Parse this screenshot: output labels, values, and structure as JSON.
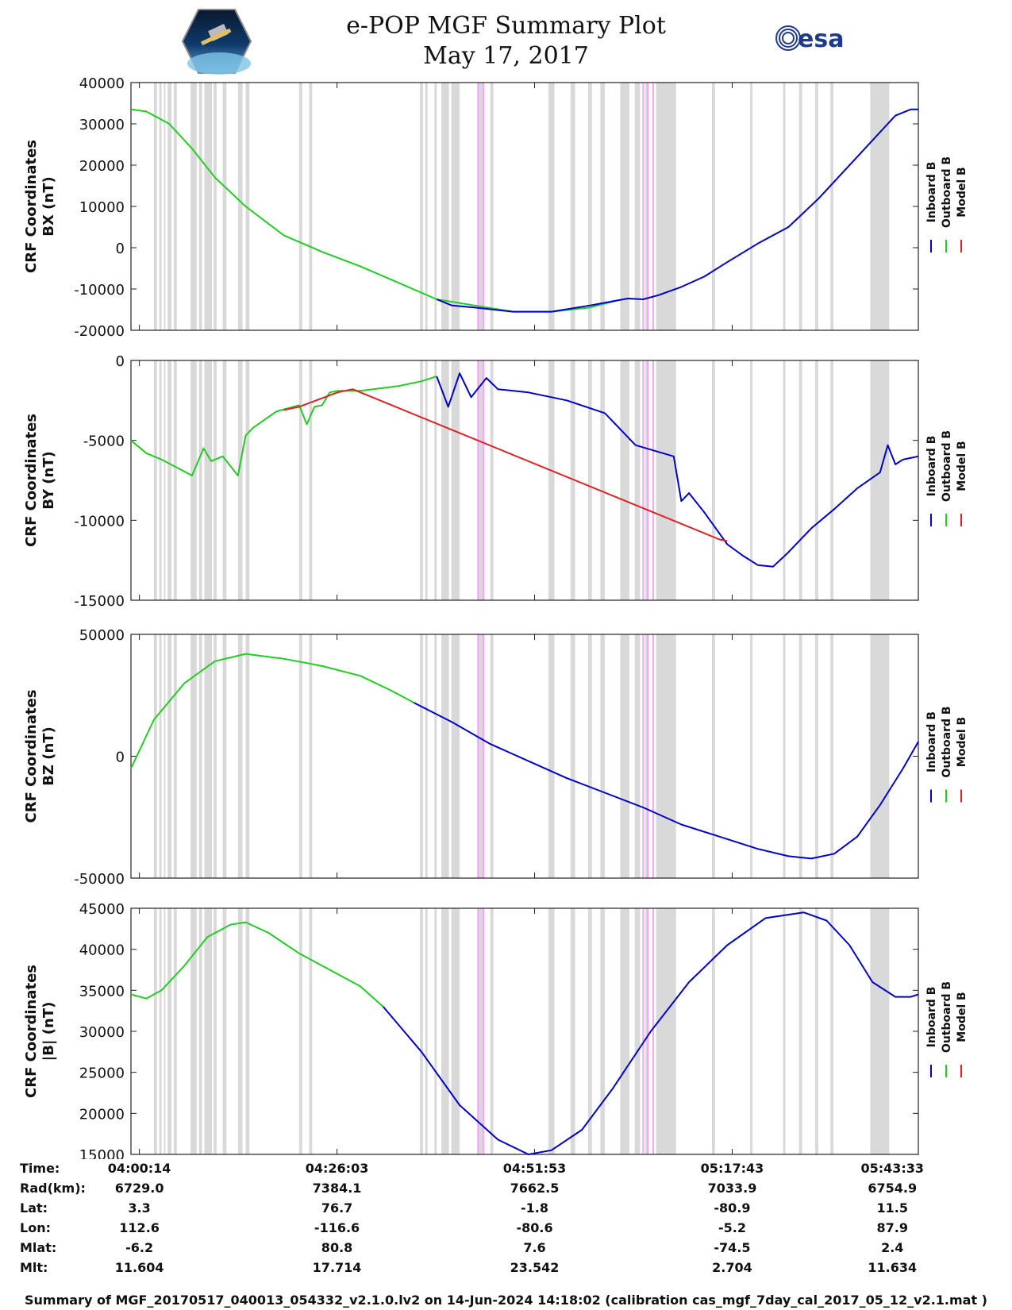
{
  "header": {
    "title_line1": "e-POP MGF Summary Plot",
    "title_line2": "May 17, 2017",
    "logo_left": "cassiope-mission-logo",
    "logo_right_text": "esa"
  },
  "legend": [
    "Inboard B",
    "Outboard B",
    "Model B"
  ],
  "colors": {
    "inboard": "#0000cc",
    "outboard": "#22cc22",
    "model": "#dd2222",
    "gap": "#d9d9d9",
    "magenta": "#f5a8f5"
  },
  "chart_data": [
    {
      "type": "line",
      "ylabel_line1": "CRF Coordinates",
      "ylabel_line2": "BX (nT)",
      "ylim": [
        -20000,
        40000
      ],
      "yticks": [
        40000,
        30000,
        20000,
        10000,
        0,
        -10000,
        -20000
      ],
      "x_minutes_range": [
        0,
        103
      ],
      "series": [
        {
          "name": "Outboard B",
          "color": "#22cc22",
          "x": [
            0,
            2,
            5,
            8,
            11,
            15,
            20,
            25,
            30,
            35,
            40,
            45,
            50,
            55,
            60,
            63.5
          ],
          "y": [
            33500,
            33000,
            30000,
            24000,
            17000,
            10000,
            3000,
            -1000,
            -4500,
            -8500,
            -12500,
            -14000,
            -15500,
            -15500,
            -14500,
            -12800
          ]
        },
        {
          "name": "Inboard B",
          "color": "#0000cc",
          "x": [
            40,
            42,
            45,
            50,
            55,
            60,
            65,
            67,
            69,
            72,
            75,
            78,
            82,
            86,
            90,
            95,
            100,
            102,
            103
          ],
          "y": [
            -12500,
            -14000,
            -14500,
            -15500,
            -15500,
            -14000,
            -12300,
            -12500,
            -11500,
            -9500,
            -7000,
            -3500,
            1000,
            5000,
            12000,
            22000,
            32000,
            33500,
            33500
          ]
        }
      ]
    },
    {
      "type": "line",
      "ylabel_line1": "CRF Coordinates",
      "ylabel_line2": "BY (nT)",
      "ylim": [
        -15000,
        0
      ],
      "yticks": [
        0,
        -5000,
        -10000,
        -15000
      ],
      "x_minutes_range": [
        0,
        103
      ],
      "series": [
        {
          "name": "Outboard B",
          "color": "#22cc22",
          "x": [
            0,
            2,
            4,
            6,
            8,
            9.5,
            10.5,
            12,
            14,
            15,
            16,
            19,
            22,
            23,
            24,
            25,
            26,
            27,
            30,
            35,
            38,
            40
          ],
          "y": [
            -5000,
            -5800,
            -6200,
            -6700,
            -7200,
            -5500,
            -6300,
            -6000,
            -7200,
            -4700,
            -4200,
            -3200,
            -2800,
            -4000,
            -2900,
            -2800,
            -2000,
            -1900,
            -1900,
            -1600,
            -1300,
            -1000
          ]
        },
        {
          "name": "Inboard B",
          "color": "#0000cc",
          "x": [
            40,
            41.5,
            43,
            44.5,
            46.5,
            48,
            52,
            57,
            62,
            66,
            71,
            72,
            73,
            75,
            78,
            80,
            82,
            84,
            86,
            89,
            92,
            95,
            98,
            99,
            100,
            101,
            103
          ],
          "y": [
            -1000,
            -2900,
            -800,
            -2300,
            -1100,
            -1800,
            -2000,
            -2500,
            -3300,
            -5300,
            -6000,
            -8800,
            -8300,
            -9500,
            -11500,
            -12200,
            -12800,
            -12900,
            -12000,
            -10500,
            -9300,
            -8000,
            -7000,
            -5300,
            -6500,
            -6200,
            -6000
          ]
        },
        {
          "name": "Model B",
          "color": "#dd2222",
          "x": [
            20,
            22,
            27,
            29,
            77,
            78
          ],
          "y": [
            -3100,
            -2900,
            -2000,
            -1800,
            -11200,
            -11300
          ]
        }
      ]
    },
    {
      "type": "line",
      "ylabel_line1": "CRF Coordinates",
      "ylabel_line2": "BZ (nT)",
      "ylim": [
        -50000,
        50000
      ],
      "yticks": [
        50000,
        0,
        -50000
      ],
      "x_minutes_range": [
        0,
        103
      ],
      "series": [
        {
          "name": "Outboard B",
          "color": "#22cc22",
          "x": [
            0,
            3,
            7,
            11,
            15,
            20,
            25,
            30,
            34,
            37
          ],
          "y": [
            -5000,
            15000,
            30000,
            39000,
            42000,
            40000,
            37000,
            33000,
            27000,
            22000
          ]
        },
        {
          "name": "Inboard B",
          "color": "#0000cc",
          "x": [
            37,
            42,
            47,
            52,
            57,
            62,
            67,
            72,
            77,
            82,
            86,
            89,
            92,
            95,
            98,
            101,
            103
          ],
          "y": [
            22000,
            14000,
            5000,
            -2000,
            -9000,
            -15000,
            -21000,
            -28000,
            -33000,
            -38000,
            -41000,
            -42000,
            -40000,
            -33000,
            -20000,
            -5000,
            6000
          ]
        }
      ]
    },
    {
      "type": "line",
      "ylabel_line1": "CRF Coordinates",
      "ylabel_line2": "|B| (nT)",
      "ylim": [
        15000,
        45000
      ],
      "yticks": [
        45000,
        40000,
        35000,
        30000,
        25000,
        20000,
        15000
      ],
      "x_minutes_range": [
        0,
        103
      ],
      "series": [
        {
          "name": "Outboard B",
          "color": "#22cc22",
          "x": [
            0,
            2,
            4,
            7,
            10,
            13,
            15,
            18,
            22,
            26,
            30,
            33
          ],
          "y": [
            34500,
            34000,
            35000,
            38000,
            41500,
            43000,
            43300,
            42000,
            39500,
            37500,
            35500,
            33000
          ]
        },
        {
          "name": "Inboard B",
          "color": "#0000cc",
          "x": [
            33,
            38,
            43,
            48,
            52,
            55,
            59,
            63,
            68,
            73,
            78,
            83,
            88,
            91,
            94,
            97,
            100,
            102,
            103
          ],
          "y": [
            33000,
            27500,
            21000,
            16800,
            15000,
            15500,
            18000,
            23000,
            30000,
            36000,
            40500,
            43800,
            44500,
            43500,
            40500,
            36000,
            34200,
            34200,
            34500
          ]
        }
      ]
    }
  ],
  "info": {
    "labels": [
      "Time:",
      "Rad(km):",
      "Lat:",
      "Lon:",
      "Mlat:",
      "Mlt:"
    ],
    "columns": [
      {
        "time": "04:00:14",
        "rad": "6729.0",
        "lat": "3.3",
        "lon": "112.6",
        "mlat": "-6.2",
        "mlt": "11.604"
      },
      {
        "time": "04:26:03",
        "rad": "7384.1",
        "lat": "76.7",
        "lon": "-116.6",
        "mlat": "80.8",
        "mlt": "17.714"
      },
      {
        "time": "04:51:53",
        "rad": "7662.5",
        "lat": "-1.8",
        "lon": "-80.6",
        "mlat": "7.6",
        "mlt": "23.542"
      },
      {
        "time": "05:17:43",
        "rad": "7033.9",
        "lat": "-80.9",
        "lon": "-5.2",
        "mlat": "-74.5",
        "mlt": "2.704"
      },
      {
        "time": "05:43:33",
        "rad": "6754.9",
        "lat": "11.5",
        "lon": "87.9",
        "mlat": "2.4",
        "mlt": "11.634"
      }
    ]
  },
  "footer": "Summary of MGF_20170517_040013_054332_v2.1.0.lv2 on 14-Jun-2024 14:18:02 (calibration cas_mgf_7day_cal_2017_05_12_v2.1.mat )"
}
